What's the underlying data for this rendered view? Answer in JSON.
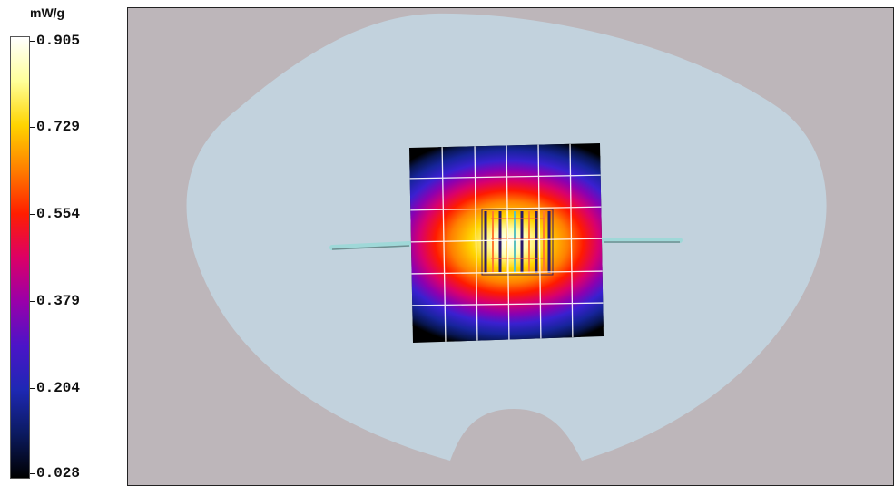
{
  "chart_data": {
    "type": "heatmap",
    "unit": "mW/g",
    "colorbar_ticks": [
      "0.905",
      "0.729",
      "0.554",
      "0.379",
      "0.204",
      "0.028"
    ],
    "colorbar_range": [
      0.028,
      0.905
    ],
    "colors": {
      "background": "#bdb6ba",
      "phantom": "#c2d2dd",
      "antenna": "#9fd8d8"
    }
  }
}
